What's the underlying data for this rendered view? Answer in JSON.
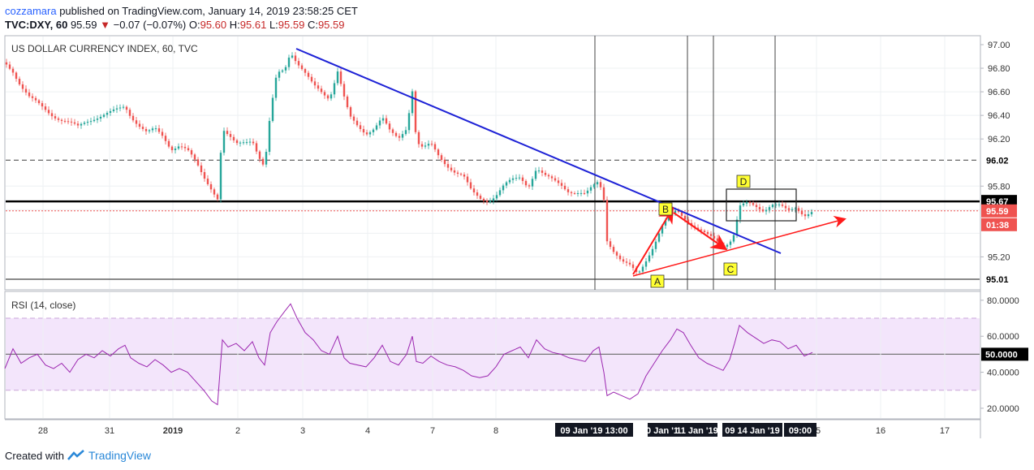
{
  "header": {
    "author": "cozzamara",
    "published": "published on TradingView.com, January 14, 2019 23:58:25 CET",
    "symbol": "TVC:DXY, 60",
    "last": "95.59",
    "change": "−0.07 (−0.07%)",
    "o_label": "O:",
    "o": "95.60",
    "h_label": "H:",
    "h": "95.61",
    "l_label": "L:",
    "l": "95.59",
    "c_label": "C:",
    "c": "95.59"
  },
  "footer": {
    "created_with": "Created with",
    "brand": "TradingView"
  },
  "colors": {
    "up": "#26a69a",
    "down": "#ef5350",
    "trend_blue": "#1e22d6",
    "arrow_red": "#ff1a1a",
    "rsi": "#9c27b0",
    "rsi_band": "#f3e5fb"
  },
  "chart_data": [
    {
      "type": "candlestick",
      "title": "US DOLLAR CURRENCY INDEX, 60, TVC",
      "ylim": [
        94.95,
        97.07
      ],
      "y_ticks": [
        "97.00",
        "96.80",
        "96.60",
        "96.40",
        "96.20",
        "95.80",
        "95.20"
      ],
      "x_ticks": [
        "28",
        "31",
        "2019",
        "2",
        "3",
        "4",
        "7",
        "8",
        "5",
        "16",
        "17"
      ],
      "price_labels": {
        "resistance_high": "96.02",
        "resistance": "95.67",
        "last": "95.59",
        "countdown": "01:38",
        "support": "95.01"
      },
      "date_labels": [
        "09 Jan '19  13:00",
        "10 Jan '19",
        "11 Jan '19",
        "09  14 Jan '19",
        "09:00"
      ],
      "pattern_labels": [
        "A",
        "B",
        "C",
        "D"
      ],
      "levels": {
        "dashed_resistance": 96.02,
        "resistance": 95.67,
        "support": 95.01,
        "last_price": 95.59
      },
      "close_path": [
        [
          0,
          96.85
        ],
        [
          10,
          96.78
        ],
        [
          20,
          96.65
        ],
        [
          30,
          96.55
        ],
        [
          40,
          96.5
        ],
        [
          50,
          96.45
        ],
        [
          60,
          96.4
        ],
        [
          70,
          96.36
        ],
        [
          80,
          96.33
        ],
        [
          90,
          96.3
        ],
        [
          100,
          96.35
        ],
        [
          110,
          96.38
        ],
        [
          120,
          96.4
        ],
        [
          130,
          96.42
        ],
        [
          140,
          96.45
        ],
        [
          148,
          96.48
        ],
        [
          155,
          96.4
        ],
        [
          165,
          96.32
        ],
        [
          175,
          96.25
        ],
        [
          185,
          96.28
        ],
        [
          195,
          96.22
        ],
        [
          205,
          96.12
        ],
        [
          215,
          96.15
        ],
        [
          225,
          96.1
        ],
        [
          235,
          96.0
        ],
        [
          245,
          95.88
        ],
        [
          255,
          95.78
        ],
        [
          262,
          95.7
        ],
        [
          268,
          96.28
        ],
        [
          275,
          96.22
        ],
        [
          285,
          96.15
        ],
        [
          295,
          96.18
        ],
        [
          305,
          96.2
        ],
        [
          313,
          96.05
        ],
        [
          320,
          95.95
        ],
        [
          327,
          96.4
        ],
        [
          335,
          96.75
        ],
        [
          345,
          96.8
        ],
        [
          352,
          96.95
        ],
        [
          360,
          96.85
        ],
        [
          370,
          96.75
        ],
        [
          380,
          96.65
        ],
        [
          390,
          96.6
        ],
        [
          400,
          96.55
        ],
        [
          410,
          96.78
        ],
        [
          418,
          96.55
        ],
        [
          425,
          96.38
        ],
        [
          435,
          96.3
        ],
        [
          445,
          96.25
        ],
        [
          455,
          96.3
        ],
        [
          465,
          96.38
        ],
        [
          475,
          96.25
        ],
        [
          485,
          96.2
        ],
        [
          495,
          96.3
        ],
        [
          502,
          96.62
        ],
        [
          507,
          96.18
        ],
        [
          515,
          96.12
        ],
        [
          525,
          96.15
        ],
        [
          535,
          96.05
        ],
        [
          545,
          95.98
        ],
        [
          555,
          95.92
        ],
        [
          565,
          95.88
        ],
        [
          575,
          95.75
        ],
        [
          585,
          95.7
        ],
        [
          595,
          95.68
        ],
        [
          605,
          95.72
        ],
        [
          615,
          95.8
        ],
        [
          625,
          95.85
        ],
        [
          635,
          95.88
        ],
        [
          645,
          95.8
        ],
        [
          655,
          95.95
        ],
        [
          665,
          95.88
        ],
        [
          675,
          95.85
        ],
        [
          685,
          95.82
        ],
        [
          695,
          95.76
        ],
        [
          705,
          95.74
        ],
        [
          715,
          95.72
        ],
        [
          725,
          95.8
        ],
        [
          732,
          95.85
        ],
        [
          738,
          95.7
        ],
        [
          742,
          95.35
        ],
        [
          750,
          95.25
        ],
        [
          760,
          95.15
        ],
        [
          770,
          95.12
        ],
        [
          780,
          95.06
        ],
        [
          790,
          95.18
        ],
        [
          800,
          95.3
        ],
        [
          810,
          95.45
        ],
        [
          820,
          95.55
        ],
        [
          828,
          95.6
        ],
        [
          836,
          95.55
        ],
        [
          845,
          95.48
        ],
        [
          855,
          95.42
        ],
        [
          865,
          95.38
        ],
        [
          875,
          95.35
        ],
        [
          885,
          95.3
        ],
        [
          893,
          95.33
        ],
        [
          899,
          95.4
        ],
        [
          905,
          95.62
        ],
        [
          915,
          95.65
        ],
        [
          925,
          95.63
        ],
        [
          935,
          95.6
        ],
        [
          945,
          95.65
        ],
        [
          955,
          95.63
        ],
        [
          965,
          95.58
        ],
        [
          975,
          95.62
        ],
        [
          985,
          95.56
        ],
        [
          995,
          95.59
        ]
      ]
    },
    {
      "type": "line",
      "title": "RSI (14, close)",
      "ylim": [
        15,
        84
      ],
      "y_ticks": [
        "80.0000",
        "60.0000",
        "50.0000",
        "40.0000",
        "20.0000"
      ],
      "bands": [
        30,
        70
      ],
      "midline": 50,
      "series": [
        {
          "values": [
            [
              0,
              42
            ],
            [
              10,
              53
            ],
            [
              20,
              45
            ],
            [
              30,
              48
            ],
            [
              40,
              50
            ],
            [
              50,
              44
            ],
            [
              60,
              42
            ],
            [
              70,
              45
            ],
            [
              80,
              40
            ],
            [
              90,
              47
            ],
            [
              100,
              50
            ],
            [
              110,
              48
            ],
            [
              120,
              52
            ],
            [
              130,
              49
            ],
            [
              140,
              53
            ],
            [
              148,
              55
            ],
            [
              155,
              48
            ],
            [
              165,
              45
            ],
            [
              175,
              43
            ],
            [
              185,
              47
            ],
            [
              195,
              44
            ],
            [
              205,
              40
            ],
            [
              215,
              42
            ],
            [
              225,
              40
            ],
            [
              235,
              35
            ],
            [
              245,
              30
            ],
            [
              255,
              24
            ],
            [
              262,
              22
            ],
            [
              268,
              58
            ],
            [
              275,
              54
            ],
            [
              285,
              56
            ],
            [
              295,
              52
            ],
            [
              305,
              57
            ],
            [
              313,
              48
            ],
            [
              320,
              44
            ],
            [
              327,
              62
            ],
            [
              335,
              68
            ],
            [
              345,
              74
            ],
            [
              352,
              78
            ],
            [
              360,
              70
            ],
            [
              370,
              62
            ],
            [
              380,
              58
            ],
            [
              390,
              52
            ],
            [
              400,
              50
            ],
            [
              410,
              60
            ],
            [
              418,
              48
            ],
            [
              425,
              45
            ],
            [
              435,
              44
            ],
            [
              445,
              43
            ],
            [
              455,
              48
            ],
            [
              465,
              55
            ],
            [
              475,
              46
            ],
            [
              485,
              44
            ],
            [
              495,
              50
            ],
            [
              502,
              60
            ],
            [
              507,
              46
            ],
            [
              515,
              45
            ],
            [
              525,
              49
            ],
            [
              535,
              46
            ],
            [
              545,
              44
            ],
            [
              555,
              43
            ],
            [
              565,
              41
            ],
            [
              575,
              38
            ],
            [
              585,
              37
            ],
            [
              595,
              38
            ],
            [
              605,
              43
            ],
            [
              615,
              50
            ],
            [
              625,
              52
            ],
            [
              635,
              54
            ],
            [
              645,
              48
            ],
            [
              655,
              58
            ],
            [
              665,
              53
            ],
            [
              675,
              51
            ],
            [
              685,
              50
            ],
            [
              695,
              48
            ],
            [
              705,
              47
            ],
            [
              715,
              46
            ],
            [
              725,
              52
            ],
            [
              732,
              54
            ],
            [
              738,
              40
            ],
            [
              742,
              27
            ],
            [
              750,
              29
            ],
            [
              760,
              27
            ],
            [
              770,
              25
            ],
            [
              780,
              28
            ],
            [
              790,
              38
            ],
            [
              800,
              45
            ],
            [
              810,
              52
            ],
            [
              820,
              58
            ],
            [
              828,
              64
            ],
            [
              836,
              62
            ],
            [
              845,
              55
            ],
            [
              855,
              48
            ],
            [
              865,
              45
            ],
            [
              875,
              43
            ],
            [
              885,
              41
            ],
            [
              893,
              47
            ],
            [
              899,
              56
            ],
            [
              905,
              66
            ],
            [
              915,
              62
            ],
            [
              925,
              59
            ],
            [
              935,
              56
            ],
            [
              945,
              58
            ],
            [
              955,
              57
            ],
            [
              965,
              53
            ],
            [
              975,
              55
            ],
            [
              985,
              49
            ],
            [
              995,
              51
            ]
          ]
        }
      ]
    }
  ]
}
